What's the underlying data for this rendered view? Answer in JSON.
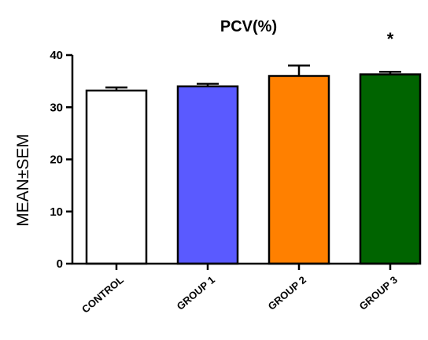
{
  "chart_data": {
    "type": "bar",
    "title": "PCV(%)",
    "xlabel": "",
    "ylabel": "MEAN±SEM",
    "ylim": [
      0,
      40
    ],
    "yticks": [
      "0",
      "10",
      "20",
      "30",
      "40"
    ],
    "categories": [
      "CONTROL",
      "GROUP 1",
      "GROUP 2",
      "GROUP 3"
    ],
    "values": [
      33.2,
      34.0,
      36.0,
      36.3
    ],
    "errors": [
      0.6,
      0.5,
      2.0,
      0.5
    ],
    "colors": [
      "#ffffff",
      "#5a5aff",
      "#ff8000",
      "#006400"
    ],
    "annotations": [
      {
        "category": "GROUP 3",
        "text": "*"
      }
    ],
    "grid": false,
    "legend": "none"
  }
}
